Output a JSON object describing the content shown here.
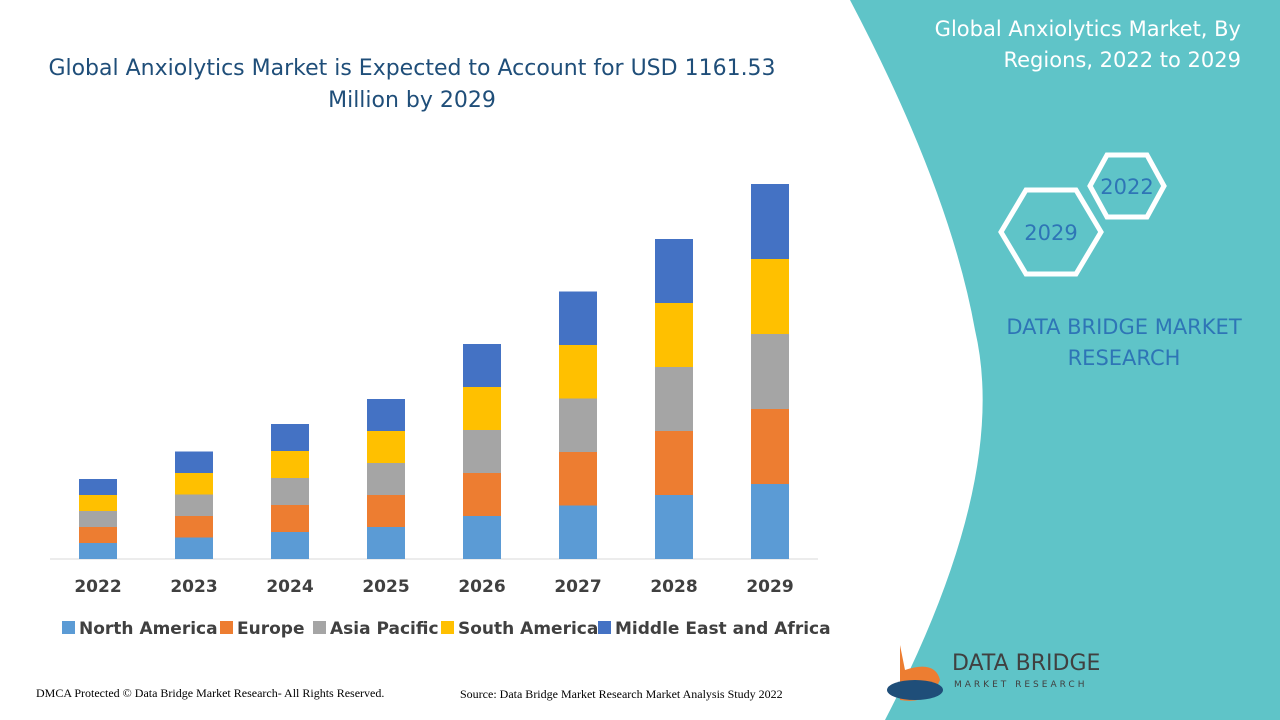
{
  "chart_data": {
    "type": "stacked_bar",
    "title": "Global Anxiolytics Market is Expected to Account for USD 1161.53 Million by 2029",
    "categories": [
      "2022",
      "2023",
      "2024",
      "2025",
      "2026",
      "2027",
      "2028",
      "2029"
    ],
    "series": [
      {
        "name": "North America",
        "color": "#5b9bd5",
        "values": [
          3.2,
          4.3,
          5.4,
          6.4,
          8.6,
          10.7,
          12.8,
          15
        ]
      },
      {
        "name": "Europe",
        "color": "#ed7d31",
        "values": [
          3.2,
          4.3,
          5.4,
          6.4,
          8.6,
          10.7,
          12.8,
          15
        ]
      },
      {
        "name": "Asia Pacific",
        "color": "#a5a5a5",
        "values": [
          3.2,
          4.3,
          5.4,
          6.4,
          8.6,
          10.7,
          12.8,
          15
        ]
      },
      {
        "name": "South America",
        "color": "#ffc000",
        "values": [
          3.2,
          4.3,
          5.4,
          6.4,
          8.6,
          10.7,
          12.8,
          15
        ]
      },
      {
        "name": "Middle East and Africa",
        "color": "#4472c4",
        "values": [
          3.2,
          4.3,
          5.4,
          6.4,
          8.6,
          10.7,
          12.8,
          15
        ]
      }
    ],
    "ylim": [
      0,
      80
    ]
  },
  "panel": {
    "title": "Global Anxiolytics Market, By Regions, 2022 to 2029",
    "hex_left": "2029",
    "hex_right": "2022",
    "brand": "DATA BRIDGE MARKET RESEARCH",
    "logo_name": "DATA BRIDGE",
    "logo_sub": "MARKET RESEARCH"
  },
  "footer": {
    "left": "DMCA Protected © Data Bridge Market Research- All Rights Reserved.",
    "right": "Source: Data Bridge Market Research Market Analysis Study 2022"
  }
}
